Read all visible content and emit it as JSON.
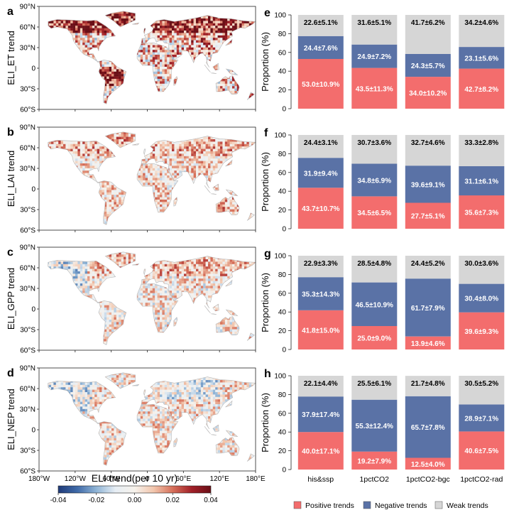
{
  "maps": [
    {
      "letter": "a",
      "ylabel": "ELI_ET trend"
    },
    {
      "letter": "b",
      "ylabel": "ELI_LAI trend"
    },
    {
      "letter": "c",
      "ylabel": "ELI_GPP trend"
    },
    {
      "letter": "d",
      "ylabel": "ELI_NEP trend"
    }
  ],
  "map_axes": {
    "lat_ticks": [
      "90°N",
      "60°N",
      "30°N",
      "0",
      "30°S",
      "60°S"
    ],
    "lon_ticks": [
      "180°W",
      "120°W",
      "60°W",
      "0",
      "60°E",
      "120°E",
      "180°E"
    ]
  },
  "colorbar": {
    "title": "ELI trend(per 10 yr)",
    "ticks": [
      "-0.04",
      "-0.02",
      "0.00",
      "0.02",
      "0.04"
    ],
    "colors": [
      "#1f3a78",
      "#3f6aa8",
      "#8fb4d6",
      "#e7eef4",
      "#f6f2ec",
      "#f2c6ad",
      "#d6705a",
      "#a11f27",
      "#6a0f17"
    ]
  },
  "chart_data": [
    {
      "type": "bar",
      "stacked": true,
      "panel": "e",
      "categories": [
        "his&ssp",
        "1pctCO2",
        "1pctCO2-bgc",
        "1pctCO2-rad"
      ],
      "ylabel": "Proportion (%)",
      "ylim": [
        0,
        100
      ],
      "yticks": [
        "0",
        "20",
        "40",
        "60",
        "80",
        "100"
      ],
      "series": [
        {
          "name": "Positive trends",
          "values": [
            53.0,
            43.5,
            34.0,
            42.7
          ],
          "labels": [
            "53.0±10.9%",
            "43.5±11.3%",
            "34.0±10.2%",
            "42.7±8.2%"
          ]
        },
        {
          "name": "Negative trends",
          "values": [
            24.4,
            24.9,
            24.3,
            23.1
          ],
          "labels": [
            "24.4±7.6%",
            "24.9±7.2%",
            "24.3±5.7%",
            "23.1±5.6%"
          ]
        },
        {
          "name": "Weak trends",
          "values": [
            22.6,
            31.6,
            41.7,
            34.2
          ],
          "labels": [
            "22.6±5.1%",
            "31.6±5.1%",
            "41.7±6.2%",
            "34.2±4.6%"
          ]
        }
      ]
    },
    {
      "type": "bar",
      "stacked": true,
      "panel": "f",
      "categories": [
        "his&ssp",
        "1pctCO2",
        "1pctCO2-bgc",
        "1pctCO2-rad"
      ],
      "ylabel": "Proportion (%)",
      "ylim": [
        0,
        100
      ],
      "yticks": [
        "0",
        "20",
        "40",
        "60",
        "80",
        "100"
      ],
      "series": [
        {
          "name": "Positive trends",
          "values": [
            43.7,
            34.5,
            27.7,
            35.6
          ],
          "labels": [
            "43.7±10.7%",
            "34.5±6.5%",
            "27.7±5.1%",
            "35.6±7.3%"
          ]
        },
        {
          "name": "Negative trends",
          "values": [
            31.9,
            34.8,
            39.6,
            31.1
          ],
          "labels": [
            "31.9±9.4%",
            "34.8±6.9%",
            "39.6±9.1%",
            "31.1±6.1%"
          ]
        },
        {
          "name": "Weak trends",
          "values": [
            24.4,
            30.7,
            32.7,
            33.3
          ],
          "labels": [
            "24.4±3.1%",
            "30.7±3.6%",
            "32.7±4.6%",
            "33.3±2.8%"
          ]
        }
      ]
    },
    {
      "type": "bar",
      "stacked": true,
      "panel": "g",
      "categories": [
        "his&ssp",
        "1pctCO2",
        "1pctCO2-bgc",
        "1pctCO2-rad"
      ],
      "ylabel": "Proportion (%)",
      "ylim": [
        0,
        100
      ],
      "yticks": [
        "0",
        "20",
        "40",
        "60",
        "80",
        "100"
      ],
      "series": [
        {
          "name": "Positive trends",
          "values": [
            41.8,
            25.0,
            13.9,
            39.6
          ],
          "labels": [
            "41.8±15.0%",
            "25.0±9.0%",
            "13.9±4.6%",
            "39.6±9.3%"
          ]
        },
        {
          "name": "Negative trends",
          "values": [
            35.3,
            46.5,
            61.7,
            30.4
          ],
          "labels": [
            "35.3±14.3%",
            "46.5±10.9%",
            "61.7±7.9%",
            "30.4±8.0%"
          ]
        },
        {
          "name": "Weak trends",
          "values": [
            22.9,
            28.5,
            24.4,
            30.0
          ],
          "labels": [
            "22.9±3.3%",
            "28.5±4.8%",
            "24.4±5.2%",
            "30.0±3.6%"
          ]
        }
      ]
    },
    {
      "type": "bar",
      "stacked": true,
      "panel": "h",
      "categories": [
        "his&ssp",
        "1pctCO2",
        "1pctCO2-bgc",
        "1pctCO2-rad"
      ],
      "ylabel": "Proportion (%)",
      "ylim": [
        0,
        100
      ],
      "yticks": [
        "0",
        "20",
        "40",
        "60",
        "80",
        "100"
      ],
      "series": [
        {
          "name": "Positive trends",
          "values": [
            40.0,
            19.2,
            12.5,
            40.6
          ],
          "labels": [
            "40.0±17.1%",
            "19.2±7.9%",
            "12.5±4.0%",
            "40.6±7.5%"
          ]
        },
        {
          "name": "Negative trends",
          "values": [
            37.9,
            55.3,
            65.7,
            28.9
          ],
          "labels": [
            "37.9±17.4%",
            "55.3±12.4%",
            "65.7±7.8%",
            "28.9±7.1%"
          ]
        },
        {
          "name": "Weak trends",
          "values": [
            22.1,
            25.5,
            21.7,
            30.5
          ],
          "labels": [
            "22.1±4.4%",
            "25.5±6.1%",
            "21.7±4.8%",
            "30.5±5.2%"
          ]
        }
      ]
    }
  ],
  "legend": {
    "items": [
      {
        "label": "Positive trends",
        "color": "#f36d6d"
      },
      {
        "label": "Negative trends",
        "color": "#5a72a6"
      },
      {
        "label": "Weak trends",
        "color": "#d6d6d6"
      }
    ]
  },
  "colors": {
    "positive": "#f36d6d",
    "negative": "#5a72a6",
    "weak": "#d6d6d6"
  }
}
